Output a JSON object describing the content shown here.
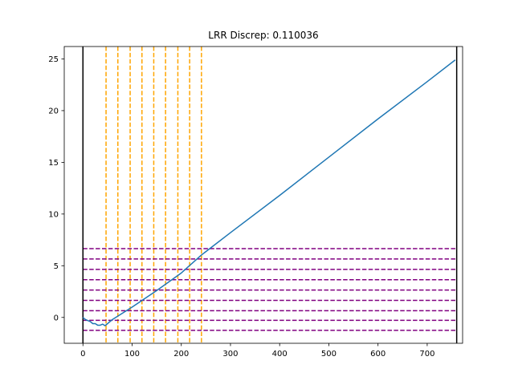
{
  "chart_data": {
    "type": "line",
    "title": "LRR Discrep: 0.110036",
    "xlabel": "",
    "ylabel": "",
    "xlim": [
      -38,
      772
    ],
    "ylim": [
      -2.5,
      26.2
    ],
    "xticks": [
      0,
      100,
      200,
      300,
      400,
      500,
      600,
      700
    ],
    "yticks": [
      0,
      5,
      10,
      15,
      20,
      25
    ],
    "grid": false,
    "legend": "none",
    "colors": {
      "series_line": "#1f77b4",
      "vertical_dashed": "#ffa500",
      "horizontal_dashed": "#800080",
      "boundary_line": "#000000"
    },
    "series": [
      {
        "values": [
          [
            0,
            0.0
          ],
          [
            5,
            -0.2
          ],
          [
            10,
            -0.3
          ],
          [
            15,
            -0.4
          ],
          [
            20,
            -0.6
          ],
          [
            25,
            -0.6
          ],
          [
            30,
            -0.75
          ],
          [
            35,
            -0.75
          ],
          [
            40,
            -0.65
          ],
          [
            45,
            -0.8
          ],
          [
            50,
            -0.6
          ],
          [
            60,
            -0.2
          ],
          [
            80,
            0.4
          ],
          [
            100,
            1.0
          ],
          [
            150,
            2.6
          ],
          [
            200,
            4.3
          ],
          [
            240,
            6.0
          ],
          [
            300,
            8.2
          ],
          [
            400,
            11.8
          ],
          [
            500,
            15.5
          ],
          [
            600,
            19.2
          ],
          [
            700,
            22.8
          ],
          [
            757,
            24.9
          ]
        ]
      }
    ],
    "vertical_dashed_x": [
      47,
      71,
      96,
      120,
      144,
      168,
      193,
      217,
      241
    ],
    "horizontal_dashed_y": [
      -1.25,
      -0.28,
      0.65,
      1.65,
      2.65,
      3.65,
      4.65,
      5.65,
      6.65
    ],
    "boundary_x": [
      0,
      760
    ],
    "dashed_span_x": [
      0,
      760
    ]
  }
}
